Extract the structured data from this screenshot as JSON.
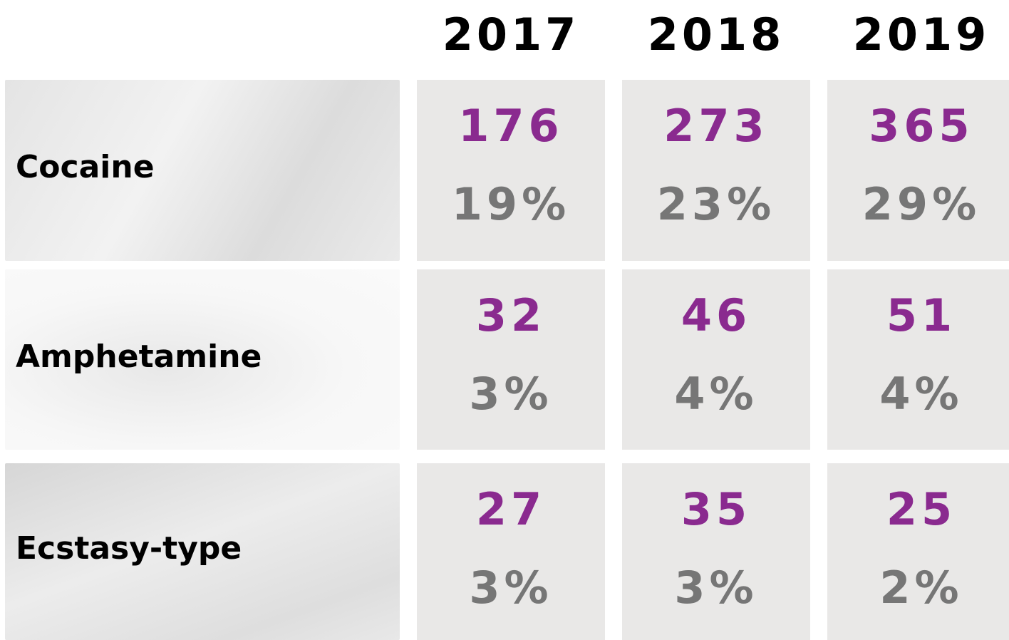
{
  "table": {
    "columns": [
      "2017",
      "2018",
      "2019"
    ],
    "rows": [
      {
        "label": "Cocaine",
        "cells": [
          {
            "count": "176",
            "share": "19%"
          },
          {
            "count": "273",
            "share": "23%"
          },
          {
            "count": "365",
            "share": "29%"
          }
        ]
      },
      {
        "label": "Amphetamine",
        "cells": [
          {
            "count": "32",
            "share": "3%"
          },
          {
            "count": "46",
            "share": "4%"
          },
          {
            "count": "51",
            "share": "4%"
          }
        ]
      },
      {
        "label": "Ecstasy-type",
        "cells": [
          {
            "count": "27",
            "share": "3%"
          },
          {
            "count": "35",
            "share": "3%"
          },
          {
            "count": "25",
            "share": "2%"
          }
        ]
      }
    ]
  }
}
